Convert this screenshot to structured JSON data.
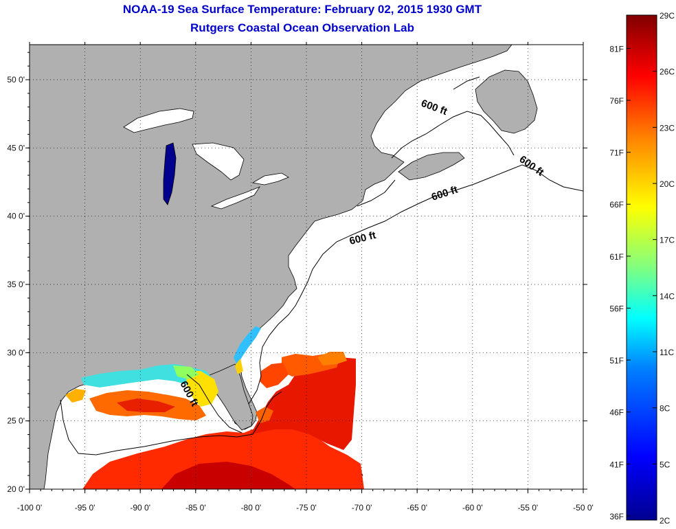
{
  "header": {
    "title": "NOAA-19 Sea Surface Temperature:  February 02, 2015 1930 GMT",
    "subtitle": "Rutgers Coastal Ocean Observation Lab"
  },
  "map": {
    "lon_ticks": [
      "-100 0'",
      "-95 0'",
      "-90 0'",
      "-85 0'",
      "-80 0'",
      "-75 0'",
      "-70 0'",
      "-65 0'",
      "-60 0'",
      "-55 0'",
      "-50 0'"
    ],
    "lat_ticks": [
      "20 0'",
      "25 0'",
      "30 0'",
      "35 0'",
      "40 0'",
      "45 0'",
      "50 0'"
    ],
    "contour_labels": [
      "600 ft",
      "600 ft",
      "600 ft",
      "600 ft",
      "600 ft"
    ],
    "colors": {
      "land": "#b0b0b0",
      "water": "#ffffff",
      "grid": "#000000"
    }
  },
  "colorbar": {
    "celsius_labels": [
      "29C",
      "26C",
      "23C",
      "20C",
      "17C",
      "14C",
      "11C",
      "8C",
      "5C",
      "2C"
    ],
    "fahrenheit_labels": [
      "81F",
      "76F",
      "71F",
      "66F",
      "61F",
      "56F",
      "51F",
      "46F",
      "41F",
      "36F"
    ],
    "colors": [
      "#00008f",
      "#0000ff",
      "#0080ff",
      "#00ffff",
      "#80ff80",
      "#ffff00",
      "#ff8000",
      "#ff0000",
      "#800000"
    ]
  }
}
